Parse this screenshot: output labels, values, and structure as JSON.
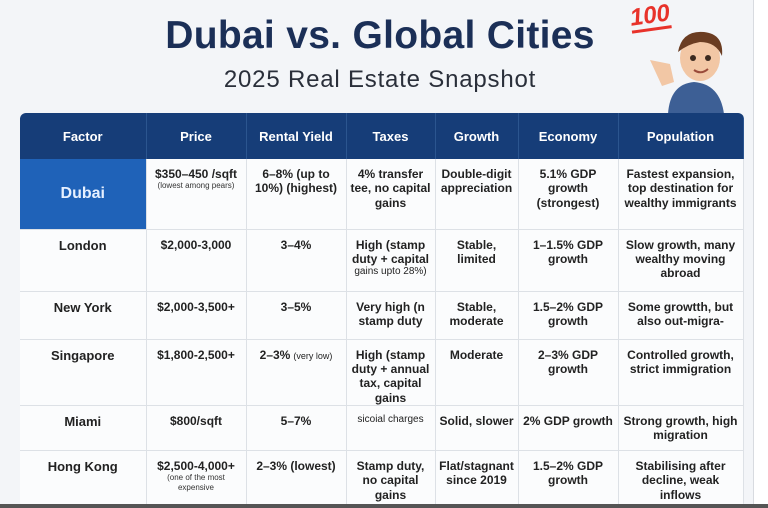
{
  "header": {
    "title": "Dubai vs. Global Cities",
    "subtitle": "2025 Real Estate Snapshot",
    "badge": "100"
  },
  "colors": {
    "title": "#1b2f57",
    "header_bg": "#163d78",
    "dubai_bg": "#1f62b8"
  },
  "table": {
    "columns": [
      "Factor",
      "Price",
      "Rental Yield",
      "Taxes",
      "Growth",
      "Economy",
      "Population"
    ],
    "rows": [
      {
        "city": "Dubai",
        "price": "$350–450 /sqft",
        "price_note": "(lowest among pears)",
        "yield": "6–8% (up to 10%) (highest)",
        "yield_note": "",
        "taxes": "4% transfer tee, no capital gains",
        "taxes_note": "",
        "growth": "Double-digit appreciation",
        "economy": "5.1% GDP growth (strongest)",
        "population": "Fastest expansion, top destination for wealthy immigrants"
      },
      {
        "city": "London",
        "price": "$2,000-3,000",
        "price_note": "",
        "yield": "3–4%",
        "yield_note": "",
        "taxes": "High (stamp duty + capital",
        "taxes_note": "gains upto 28%)",
        "growth": "Stable, limited",
        "economy": "1–1.5% GDP growth",
        "population": "Slow growth, many wealthy moving abroad"
      },
      {
        "city": "New York",
        "price": "$2,000-3,500+",
        "price_note": "",
        "yield": "3–5%",
        "yield_note": "",
        "taxes": "Very high (n stamp duty",
        "taxes_note": "",
        "growth": "Stable, moderate",
        "economy": "1.5–2% GDP growth",
        "population": "Some growtth, but also out-migra-"
      },
      {
        "city": "Singapore",
        "price": "$1,800-2,500+",
        "price_note": "",
        "yield": "2–3%",
        "yield_note": "(very low)",
        "taxes": "High (stamp duty + annual tax, capital gains",
        "taxes_note": "",
        "growth": "Moderate",
        "economy": "2–3% GDP growth",
        "population": "Controlled growth, strict immigration"
      },
      {
        "city": "Miami",
        "price": "$800/sqft",
        "price_note": "",
        "yield": "5–7%",
        "yield_note": "",
        "taxes": "",
        "taxes_note": "sicoial charges",
        "growth": "Solid, slower",
        "economy": "2% GDP growth",
        "population": "Strong growth, high migration"
      },
      {
        "city": "Hong Kong",
        "price": "$2,500-4,000+",
        "price_note": "(one of the most expensive",
        "yield": "2–3% (lowest)",
        "yield_note": "",
        "taxes": "Stamp duty, no capital gains",
        "taxes_note": "",
        "growth": "Flat/stagnant since 2019",
        "economy": "1.5–2% GDP growth",
        "population": "Stabilising after decline, weak inflows"
      }
    ]
  }
}
